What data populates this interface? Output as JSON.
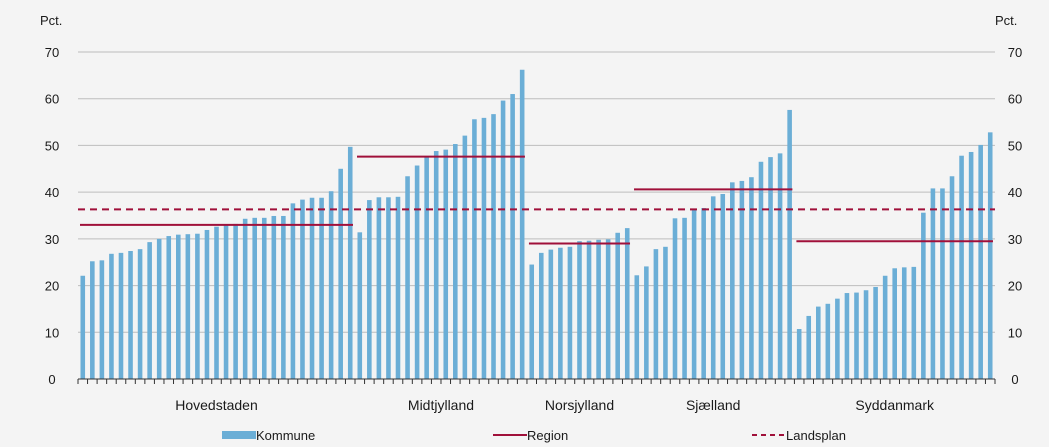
{
  "chart_data": {
    "type": "bar",
    "ylabel_left": "Pct.",
    "ylabel_right": "Pct.",
    "ylim": [
      0,
      70
    ],
    "yticks": [
      0,
      10,
      20,
      30,
      40,
      50,
      60,
      70
    ],
    "grid": true,
    "legend_position": "bottom",
    "colors": {
      "kommune": "#6baed6",
      "region": "#a0103a",
      "landsplan": "#a0103a",
      "grid": "#bdbdbd",
      "background": "#f4f4f4"
    },
    "landsplan": 36.3,
    "legend": [
      {
        "name": "Kommune",
        "style": "bar"
      },
      {
        "name": "Region",
        "style": "line"
      },
      {
        "name": "Landsplan",
        "style": "dashed"
      }
    ],
    "groups": [
      {
        "name": "Hovedstaden",
        "region_value": 33,
        "values": [
          22.1,
          25.2,
          25.4,
          26.8,
          27.0,
          27.4,
          27.8,
          29.3,
          30.0,
          30.6,
          30.9,
          31.0,
          31.1,
          31.9,
          32.6,
          32.9,
          33.2,
          34.3,
          34.5,
          34.5,
          34.9,
          34.9,
          37.6,
          38.4,
          38.8,
          38.8,
          40.2,
          45.0,
          49.7
        ]
      },
      {
        "name": "Midtjylland",
        "region_value": 47.6,
        "values": [
          31.4,
          38.3,
          38.9,
          38.9,
          39.0,
          43.4,
          45.7,
          47.6,
          48.8,
          49.1,
          50.3,
          52.1,
          55.6,
          55.9,
          56.7,
          59.6,
          61.0,
          66.2
        ]
      },
      {
        "name": "Norsjylland",
        "region_value": 29,
        "values": [
          24.5,
          27.0,
          27.7,
          28.1,
          28.3,
          29.5,
          29.6,
          29.8,
          29.9,
          31.3,
          32.3
        ]
      },
      {
        "name": "Sjælland",
        "region_value": 40.6,
        "values": [
          22.2,
          24.1,
          27.8,
          28.3,
          34.4,
          34.5,
          36.4,
          36.6,
          39.1,
          39.6,
          42.1,
          42.4,
          43.2,
          46.5,
          47.5,
          48.3,
          57.6
        ]
      },
      {
        "name": "Syddanmark",
        "region_value": 29.5,
        "values": [
          10.7,
          13.5,
          15.5,
          16.1,
          17.2,
          18.4,
          18.5,
          19.0,
          19.7,
          22.1,
          23.7,
          23.9,
          24.0,
          35.6,
          40.8,
          40.8,
          43.4,
          47.8,
          48.6,
          50.1,
          52.8
        ]
      }
    ]
  }
}
